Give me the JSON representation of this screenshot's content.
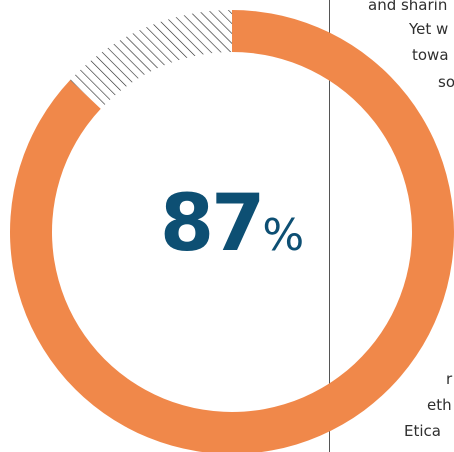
{
  "chart_data": {
    "type": "pie",
    "value": 87,
    "value_label": "87",
    "unit_label": "%",
    "remainder": 13,
    "colors": {
      "value": "#F0884A",
      "remainder_hatch": "#222222",
      "label": "#0D4F73"
    }
  },
  "background_text": {
    "lines": [
      "and sharin",
      "Yet w",
      "towa",
      "so",
      "r",
      "eth",
      "Etica"
    ]
  }
}
